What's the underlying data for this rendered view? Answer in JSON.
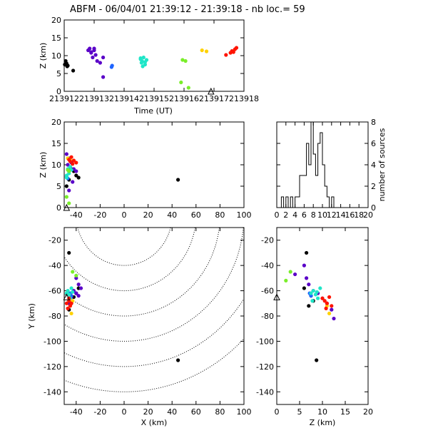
{
  "title": "ABFM - 06/04/01 21:39:12 - 21:39:18 - nb loc.=      59",
  "colors": {
    "black": "#000000",
    "purple": "#5a00c8",
    "blue": "#1e64ff",
    "cyan": "#1fe6c8",
    "green": "#7aee2a",
    "yellow": "#ffd200",
    "orange": "#ff8c00",
    "red": "#ff1400"
  },
  "chart_data": [
    {
      "id": "time-height",
      "type": "scatter",
      "xlabel": "Time (UT)",
      "ylabel": "Z (km)",
      "xlim": [
        213912,
        213918
      ],
      "ylim": [
        0,
        20
      ],
      "xticks": [
        "213912",
        "213913",
        "213914",
        "213915",
        "213916",
        "213917",
        "213918"
      ],
      "yticks": [
        "0",
        "5",
        "10",
        "15",
        "20"
      ],
      "station_marker": {
        "x": 213916.9,
        "y": 0
      },
      "groups": [
        {
          "color": "black",
          "points": [
            [
              213912.05,
              8.5
            ],
            [
              213912.08,
              7.8
            ],
            [
              213912.12,
              7.2
            ],
            [
              213912.1,
              7.0
            ],
            [
              213912.3,
              5.8
            ],
            [
              213912.02,
              7.5
            ]
          ]
        },
        {
          "color": "purple",
          "points": [
            [
              213912.8,
              11.5
            ],
            [
              213912.85,
              12.0
            ],
            [
              213912.9,
              10.8
            ],
            [
              213913.0,
              11.5
            ],
            [
              213913.05,
              10.2
            ],
            [
              213912.95,
              9.5
            ],
            [
              213912.9,
              11.0
            ],
            [
              213913.1,
              8.5
            ],
            [
              213913.2,
              8.0
            ],
            [
              213913.3,
              4.0
            ],
            [
              213913.3,
              9.5
            ],
            [
              213913.0,
              12.0
            ]
          ]
        },
        {
          "color": "blue",
          "points": [
            [
              213913.6,
              7.2
            ],
            [
              213913.58,
              6.8
            ]
          ]
        },
        {
          "color": "cyan",
          "points": [
            [
              213914.55,
              9.0
            ],
            [
              213914.6,
              8.5
            ],
            [
              213914.65,
              9.5
            ],
            [
              213914.7,
              7.5
            ],
            [
              213914.58,
              8.0
            ],
            [
              213914.75,
              8.8
            ],
            [
              213914.62,
              7.0
            ],
            [
              213914.7,
              8.2
            ],
            [
              213914.55,
              9.3
            ]
          ]
        },
        {
          "color": "green",
          "points": [
            [
              213915.95,
              8.8
            ],
            [
              213916.05,
              8.5
            ],
            [
              213915.9,
              2.5
            ],
            [
              213916.15,
              1.0
            ]
          ]
        },
        {
          "color": "yellow",
          "points": [
            [
              213916.6,
              11.5
            ],
            [
              213916.75,
              11.2
            ]
          ]
        },
        {
          "color": "red",
          "points": [
            [
              213917.4,
              10.2
            ],
            [
              213917.55,
              10.8
            ],
            [
              213917.6,
              11.3
            ],
            [
              213917.7,
              11.8
            ],
            [
              213917.75,
              12.2
            ],
            [
              213917.65,
              11.0
            ]
          ]
        }
      ]
    },
    {
      "id": "x-height",
      "type": "scatter",
      "ylabel": "Z (km)",
      "xlim": [
        -50,
        100
      ],
      "ylim": [
        0,
        20
      ],
      "xticks": [
        "-40",
        "-20",
        "0",
        "20",
        "40",
        "60",
        "80",
        "100"
      ],
      "yticks": [
        "0",
        "5",
        "10",
        "15",
        "20"
      ],
      "station_marker": {
        "x": -48,
        "y": 0
      },
      "groups": [
        {
          "color": "black",
          "points": [
            [
              -42,
              8.5
            ],
            [
              -40,
              7.5
            ],
            [
              -38,
              7.0
            ],
            [
              -44,
              9.0
            ],
            [
              -46,
              6.5
            ],
            [
              -48,
              5.0
            ],
            [
              45,
              6.5
            ]
          ]
        },
        {
          "color": "purple",
          "points": [
            [
              -48,
              12.5
            ],
            [
              -46,
              11.5
            ],
            [
              -44,
              10.5
            ],
            [
              -47,
              10.0
            ],
            [
              -45,
              9.5
            ],
            [
              -42,
              9.0
            ],
            [
              -40,
              8.5
            ],
            [
              -43,
              6.0
            ],
            [
              -46,
              4.0
            ]
          ]
        },
        {
          "color": "blue",
          "points": [
            [
              -48,
              7.2
            ],
            [
              -47,
              6.8
            ]
          ]
        },
        {
          "color": "cyan",
          "points": [
            [
              -47,
              9.0
            ],
            [
              -46,
              8.5
            ],
            [
              -45,
              9.5
            ],
            [
              -48,
              7.5
            ],
            [
              -46,
              8.0
            ],
            [
              -44,
              8.8
            ],
            [
              -48,
              7.0
            ]
          ]
        },
        {
          "color": "green",
          "points": [
            [
              -47,
              8.8
            ],
            [
              -46,
              8.5
            ],
            [
              -48,
              2.5
            ],
            [
              -46,
              1.0
            ]
          ]
        },
        {
          "color": "yellow",
          "points": [
            [
              -47,
              11.5
            ],
            [
              -45,
              11.2
            ]
          ]
        },
        {
          "color": "red",
          "points": [
            [
              -46,
              11.2
            ],
            [
              -44,
              11.8
            ],
            [
              -42,
              11.0
            ],
            [
              -40,
              10.5
            ],
            [
              -43,
              10.2
            ],
            [
              -45,
              10.8
            ]
          ]
        }
      ]
    },
    {
      "id": "histogram",
      "type": "bar",
      "ylabel": "number of sources",
      "xlim": [
        0,
        20
      ],
      "ylim": [
        0,
        8
      ],
      "xticks": [
        "0",
        "2",
        "4",
        "6",
        "8",
        "10",
        "12",
        "14",
        "16",
        "18",
        "20"
      ],
      "yticks": [
        "0",
        "2",
        "4",
        "6",
        "8"
      ],
      "bin_width": 0.5,
      "bin_start": 1.0,
      "values": [
        1,
        0,
        1,
        0,
        1,
        0,
        1,
        1,
        3,
        3,
        3,
        6,
        4,
        8,
        5,
        3,
        6,
        7,
        4,
        2,
        1,
        0,
        1
      ]
    },
    {
      "id": "plan-view",
      "type": "scatter",
      "xlabel": "X (km)",
      "ylabel": "Y (km)",
      "xlim": [
        -50,
        100
      ],
      "ylim": [
        -150,
        -10
      ],
      "xticks": [
        "-40",
        "-20",
        "0",
        "20",
        "40",
        "60",
        "80",
        "100"
      ],
      "yticks": [
        "-20",
        "-40",
        "-60",
        "-80",
        "-100",
        "-120",
        "-140"
      ],
      "range_rings_center": [
        0,
        0
      ],
      "range_rings": [
        40,
        60,
        80,
        100,
        120,
        140
      ],
      "station_marker": {
        "x": -48,
        "y": -65
      },
      "groups": [
        {
          "color": "black",
          "points": [
            [
              -46,
              -30
            ],
            [
              -44,
              -70
            ],
            [
              -40,
              -62
            ],
            [
              -38,
              -58
            ],
            [
              -42,
              -65
            ],
            [
              -46,
              -75
            ],
            [
              45,
              -115
            ]
          ]
        },
        {
          "color": "purple",
          "points": [
            [
              -40,
              -50
            ],
            [
              -38,
              -55
            ],
            [
              -36,
              -58
            ],
            [
              -42,
              -60
            ],
            [
              -44,
              -65
            ],
            [
              -46,
              -70
            ],
            [
              -40,
              -62
            ],
            [
              -38,
              -64
            ]
          ]
        },
        {
          "color": "blue",
          "points": [
            [
              -45,
              -62
            ],
            [
              -44,
              -64
            ]
          ]
        },
        {
          "color": "cyan",
          "points": [
            [
              -47,
              -60
            ],
            [
              -46,
              -63
            ],
            [
              -45,
              -66
            ],
            [
              -48,
              -62
            ],
            [
              -44,
              -58
            ],
            [
              -43,
              -61
            ]
          ]
        },
        {
          "color": "green",
          "points": [
            [
              -43,
              -45
            ],
            [
              -40,
              -48
            ]
          ]
        },
        {
          "color": "yellow",
          "points": [
            [
              -43,
              -68
            ],
            [
              -45,
              -72
            ],
            [
              -44,
              -78
            ]
          ]
        },
        {
          "color": "red",
          "points": [
            [
              -46,
              -68
            ],
            [
              -45,
              -72
            ],
            [
              -44,
              -70
            ],
            [
              -47,
              -74
            ],
            [
              -48,
              -70
            ],
            [
              -46,
              -66
            ]
          ]
        }
      ]
    },
    {
      "id": "z-y",
      "type": "scatter",
      "xlabel": "Z (km)",
      "xlim": [
        0,
        20
      ],
      "ylim": [
        -150,
        -10
      ],
      "xticks": [
        "0",
        "5",
        "10",
        "15",
        "20"
      ],
      "yticks": [
        "-20",
        "-40",
        "-60",
        "-80",
        "-100",
        "-120",
        "-140"
      ],
      "station_marker": {
        "x": 0,
        "y": -65
      },
      "groups": [
        {
          "color": "black",
          "points": [
            [
              6.5,
              -30
            ],
            [
              7.5,
              -64
            ],
            [
              8,
              -68
            ],
            [
              7,
              -72
            ],
            [
              6,
              -58
            ],
            [
              8.7,
              -115
            ]
          ]
        },
        {
          "color": "purple",
          "points": [
            [
              4,
              -47
            ],
            [
              6.5,
              -50
            ],
            [
              7,
              -55
            ],
            [
              8,
              -60
            ],
            [
              9,
              -62
            ],
            [
              10,
              -66
            ],
            [
              11,
              -70
            ],
            [
              12,
              -75
            ],
            [
              12.5,
              -82
            ],
            [
              6,
              -40
            ]
          ]
        },
        {
          "color": "blue",
          "points": [
            [
              7.2,
              -62
            ],
            [
              7.5,
              -64
            ]
          ]
        },
        {
          "color": "cyan",
          "points": [
            [
              8,
              -60
            ],
            [
              8.5,
              -63
            ],
            [
              9,
              -66
            ],
            [
              7.5,
              -62
            ],
            [
              9.5,
              -58
            ],
            [
              8.8,
              -61
            ],
            [
              7.8,
              -68
            ]
          ]
        },
        {
          "color": "green",
          "points": [
            [
              2,
              -52
            ],
            [
              3,
              -45
            ]
          ]
        },
        {
          "color": "yellow",
          "points": [
            [
              11,
              -72
            ],
            [
              11.5,
              -78
            ]
          ]
        },
        {
          "color": "red",
          "points": [
            [
              10,
              -66
            ],
            [
              10.5,
              -68
            ],
            [
              11,
              -70
            ],
            [
              11.5,
              -65
            ],
            [
              12,
              -72
            ],
            [
              10.8,
              -74
            ]
          ]
        }
      ]
    }
  ]
}
